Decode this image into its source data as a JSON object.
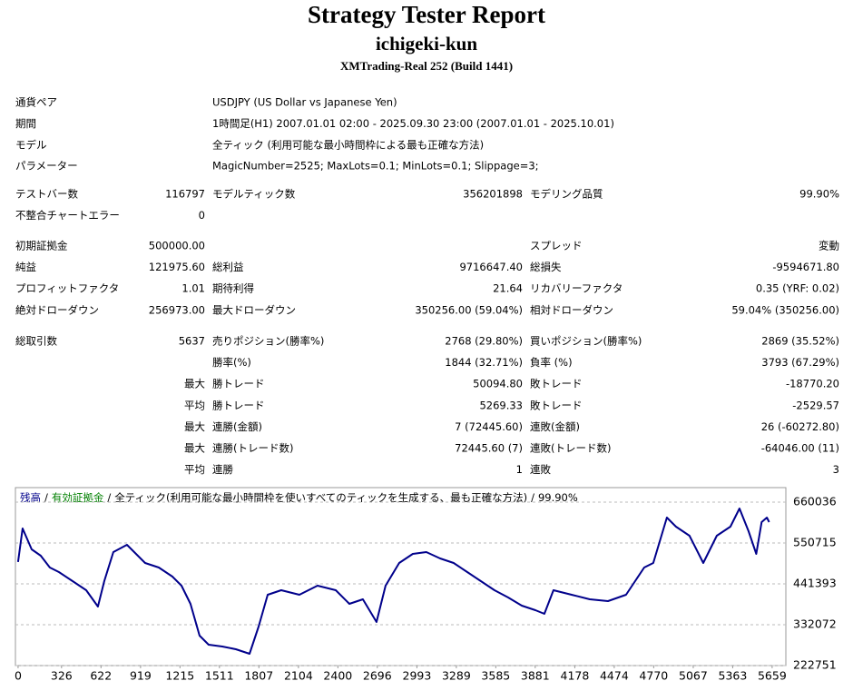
{
  "header": {
    "title": "Strategy Tester Report",
    "subtitle": "ichigeki-kun",
    "server": "XMTrading-Real 252 (Build 1441)"
  },
  "info": [
    [
      "通貨ペア",
      "USDJPY (US Dollar vs Japanese Yen)"
    ],
    [
      "期間",
      "1時間足(H1) 2007.01.01 02:00 - 2025.09.30 23:00 (2007.01.01 - 2025.10.01)"
    ],
    [
      "モデル",
      "全ティック (利用可能な最小時間枠による最も正確な方法)"
    ],
    [
      "パラメーター",
      "MagicNumber=2525; MaxLots=0.1; MinLots=0.1; Slippage=3;"
    ]
  ],
  "stats": [
    [
      [
        "テストバー数",
        "116797",
        "モデルティック数",
        "356201898",
        "モデリング品質",
        "99.90%"
      ],
      [
        "不整合チャートエラー",
        "0",
        null,
        null,
        null,
        null
      ]
    ],
    [
      [
        "初期証拠金",
        "500000.00",
        null,
        null,
        "スプレッド",
        "変動"
      ],
      [
        "純益",
        "121975.60",
        "総利益",
        "9716647.40",
        "総損失",
        "-9594671.80"
      ],
      [
        "プロフィットファクタ",
        "1.01",
        "期待利得",
        "21.64",
        "リカバリーファクタ",
        "0.35 (YRF: 0.02)"
      ],
      [
        "絶対ドローダウン",
        "256973.00",
        "最大ドローダウン",
        "350256.00 (59.04%)",
        "相対ドローダウン",
        "59.04% (350256.00)"
      ]
    ],
    [
      [
        "総取引数",
        "5637",
        "売りポジション(勝率%)",
        "2768 (29.80%)",
        "買いポジション(勝率%)",
        "2869 (35.52%)"
      ],
      [
        null,
        null,
        "勝率(%)",
        "1844 (32.71%)",
        "負率 (%)",
        "3793 (67.29%)"
      ],
      [
        null,
        "最大",
        "勝トレード",
        "50094.80",
        "敗トレード",
        "-18770.20"
      ],
      [
        null,
        "平均",
        "勝トレード",
        "5269.33",
        "敗トレード",
        "-2529.57"
      ],
      [
        null,
        "最大",
        "連勝(金額)",
        "7 (72445.60)",
        "連敗(金額)",
        "26 (-60272.80)"
      ],
      [
        null,
        "最大",
        "連勝(トレード数)",
        "72445.60 (7)",
        "連敗(トレード数)",
        "-64046.00 (11)"
      ],
      [
        null,
        "平均",
        "連勝",
        "1",
        "連敗",
        "3"
      ]
    ]
  ],
  "chart_data": {
    "type": "line",
    "x": [
      0,
      34,
      102,
      170,
      238,
      306,
      409,
      511,
      599,
      647,
      715,
      817,
      885,
      953,
      1056,
      1158,
      1226,
      1294,
      1362,
      1430,
      1532,
      1634,
      1737,
      1805,
      1873,
      1975,
      2111,
      2247,
      2384,
      2486,
      2588,
      2690,
      2758,
      2860,
      2962,
      3064,
      3167,
      3269,
      3371,
      3473,
      3575,
      3678,
      3780,
      3882,
      3950,
      4018,
      4154,
      4290,
      4427,
      4563,
      4631,
      4699,
      4767,
      4869,
      4937,
      5039,
      5142,
      5244,
      5346,
      5414,
      5482,
      5540,
      5580,
      5620,
      5637
    ],
    "series": [
      {
        "name": "残高",
        "color": "#00008b",
        "values": [
          500000,
          589590,
          533710,
          516710,
          485130,
          472980,
          448690,
          424390,
          380660,
          448690,
          526430,
          545860,
          521570,
          497280,
          485130,
          460830,
          436540,
          387950,
          302920,
          278630,
          273770,
          266480,
          254330,
          327220,
          412250,
          424390,
          412250,
          436540,
          424390,
          387950,
          400100,
          339360,
          436540,
          497280,
          521570,
          526430,
          509420,
          497280,
          472980,
          448690,
          424390,
          404960,
          383090,
          370940,
          361220,
          424390,
          412250,
          400100,
          395240,
          412250,
          448690,
          485130,
          497280,
          618740,
          594450,
          570160,
          497280,
          570160,
          594450,
          643040,
          582300,
          521570,
          606600,
          618740,
          606600
        ]
      }
    ],
    "legend_items": [
      {
        "text": "有効証拠金",
        "color": "#008000"
      },
      {
        "text": "全ティック(利用可能な最小時間枠を使いすべてのティックを生成する、最も正確な方法)"
      },
      {
        "text": "99.90%"
      }
    ],
    "legend_separator": "/",
    "xlim": [
      -20,
      5762
    ],
    "ylim": [
      222751,
      698900
    ],
    "xticks": [
      0,
      326,
      622,
      919,
      1215,
      1511,
      1807,
      2104,
      2400,
      2696,
      2993,
      3289,
      3585,
      3881,
      4178,
      4474,
      4770,
      5067,
      5363,
      5659
    ],
    "yticks": [
      222751,
      332072,
      441393,
      550715,
      660036
    ],
    "grid": true
  }
}
